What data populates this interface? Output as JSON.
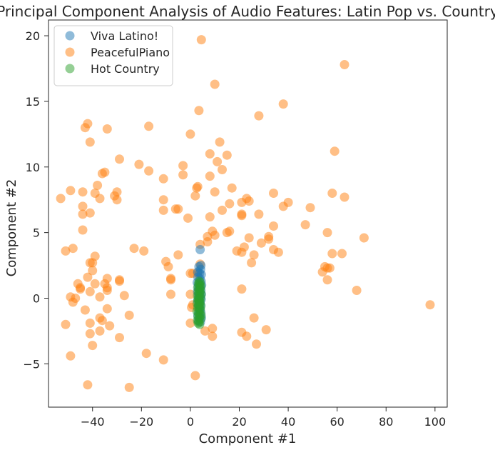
{
  "chart_data": {
    "type": "scatter",
    "title": "Principal Component Analysis of Audio Features: Latin Pop vs. Country",
    "xlabel": "Component #1",
    "ylabel": "Component #2",
    "xlim": [
      -58,
      105
    ],
    "ylim": [
      -8.3,
      21.2
    ],
    "xticks": [
      -40,
      -20,
      0,
      20,
      40,
      60,
      80,
      100
    ],
    "yticks": [
      -5,
      0,
      5,
      10,
      15,
      20
    ],
    "grid": false,
    "legend_position": "top-left",
    "series": [
      {
        "name": "Viva Latino!",
        "color": "#1f77b4",
        "points": [
          [
            4,
            3.7
          ],
          [
            4.3,
            2.5
          ],
          [
            3.5,
            2.4
          ],
          [
            4.2,
            2.2
          ],
          [
            3,
            2
          ],
          [
            3.8,
            1.9
          ],
          [
            4.5,
            1.8
          ],
          [
            3.1,
            1.6
          ],
          [
            3.9,
            1.5
          ],
          [
            4.4,
            1.3
          ],
          [
            2.8,
            1.2
          ],
          [
            3.6,
            1.1
          ],
          [
            4.6,
            1
          ],
          [
            3.2,
            0.9
          ],
          [
            4,
            0.8
          ],
          [
            3.4,
            0.7
          ],
          [
            4.3,
            0.6
          ],
          [
            2.9,
            0.5
          ],
          [
            3.7,
            0.4
          ],
          [
            4.5,
            0.3
          ],
          [
            3.3,
            0.2
          ],
          [
            4.1,
            0.1
          ],
          [
            3.5,
            0
          ],
          [
            4.4,
            -0.1
          ],
          [
            3,
            -0.2
          ],
          [
            3.8,
            -0.3
          ],
          [
            4.2,
            -0.5
          ],
          [
            3.4,
            -0.6
          ],
          [
            4,
            -0.8
          ],
          [
            3.6,
            -1
          ],
          [
            4.3,
            -1.1
          ],
          [
            3.1,
            -1.3
          ],
          [
            3.9,
            -1.4
          ],
          [
            4.5,
            -1.5
          ],
          [
            3.3,
            -1.7
          ],
          [
            4.1,
            -1.8
          ]
        ]
      },
      {
        "name": "PeacefulPiano",
        "color": "#ff7f0e",
        "points": [
          [
            4.5,
            19.7
          ],
          [
            63,
            17.8
          ],
          [
            10,
            16.3
          ],
          [
            3.5,
            14.3
          ],
          [
            28,
            13.9
          ],
          [
            38,
            14.8
          ],
          [
            -17,
            13.1
          ],
          [
            0,
            12.5
          ],
          [
            -42,
            13.3
          ],
          [
            -43,
            13
          ],
          [
            -34,
            12.9
          ],
          [
            -41,
            11.9
          ],
          [
            12,
            11.9
          ],
          [
            8,
            11
          ],
          [
            15,
            10.9
          ],
          [
            59,
            11.2
          ],
          [
            -29,
            10.6
          ],
          [
            -21,
            10.2
          ],
          [
            -3,
            10.1
          ],
          [
            11,
            10.4
          ],
          [
            13,
            9.8
          ],
          [
            -17,
            9.7
          ],
          [
            -3,
            9.4
          ],
          [
            8,
            9.3
          ],
          [
            -36,
            9.5
          ],
          [
            -35,
            9.6
          ],
          [
            -11,
            9.1
          ],
          [
            -38,
            8.6
          ],
          [
            -49,
            8.2
          ],
          [
            -44,
            8.1
          ],
          [
            -30,
            8.1
          ],
          [
            -31,
            7.8
          ],
          [
            3,
            8.5
          ],
          [
            2.6,
            8.4
          ],
          [
            10,
            8.1
          ],
          [
            17,
            8.4
          ],
          [
            34,
            8
          ],
          [
            58,
            8
          ],
          [
            -53,
            7.6
          ],
          [
            -39,
            8
          ],
          [
            -37,
            7.6
          ],
          [
            -30,
            7.5
          ],
          [
            -11,
            7.5
          ],
          [
            2,
            7.8
          ],
          [
            16,
            7.2
          ],
          [
            23,
            7.6
          ],
          [
            24,
            7.4
          ],
          [
            21,
            7.3
          ],
          [
            40,
            7.3
          ],
          [
            38,
            7
          ],
          [
            63,
            7.7
          ],
          [
            -44,
            7
          ],
          [
            -41,
            6.5
          ],
          [
            -44,
            6.4
          ],
          [
            -6,
            6.8
          ],
          [
            -5,
            6.8
          ],
          [
            -11,
            6.7
          ],
          [
            13,
            6.7
          ],
          [
            21,
            6.3
          ],
          [
            28,
            6.4
          ],
          [
            49,
            6.9
          ],
          [
            8,
            6.2
          ],
          [
            21,
            6.4
          ],
          [
            -1,
            6.1
          ],
          [
            47,
            5.6
          ],
          [
            -44,
            5.2
          ],
          [
            34,
            5.5
          ],
          [
            56,
            5
          ],
          [
            9,
            5.1
          ],
          [
            15,
            5
          ],
          [
            16,
            5.1
          ],
          [
            71,
            4.6
          ],
          [
            24,
            4.6
          ],
          [
            7,
            4.7
          ],
          [
            10,
            4.8
          ],
          [
            32,
            4.7
          ],
          [
            32,
            4.5
          ],
          [
            4,
            4.1
          ],
          [
            7,
            4.3
          ],
          [
            29,
            4.2
          ],
          [
            22,
            3.9
          ],
          [
            -48,
            3.8
          ],
          [
            -51,
            3.6
          ],
          [
            -23,
            3.8
          ],
          [
            -19,
            3.6
          ],
          [
            19,
            3.6
          ],
          [
            21,
            3.5
          ],
          [
            34,
            3.7
          ],
          [
            36,
            3.5
          ],
          [
            58,
            3.4
          ],
          [
            62,
            3.4
          ],
          [
            -39,
            3.2
          ],
          [
            -5,
            3.3
          ],
          [
            26,
            3.3
          ],
          [
            -10,
            2.8
          ],
          [
            -40,
            2.7
          ],
          [
            -41,
            2.7
          ],
          [
            4,
            2.6
          ],
          [
            25,
            2.7
          ],
          [
            55,
            2.4
          ],
          [
            56,
            2.3
          ],
          [
            57,
            2.3
          ],
          [
            -9,
            2.4
          ],
          [
            54,
            2
          ],
          [
            -40,
            2.1
          ],
          [
            0,
            1.9
          ],
          [
            1,
            1.9
          ],
          [
            3,
            1.9
          ],
          [
            -42,
            1.6
          ],
          [
            -34,
            1.5
          ],
          [
            -29,
            1.4
          ],
          [
            -29,
            1.3
          ],
          [
            -8,
            1.5
          ],
          [
            -8,
            1.4
          ],
          [
            56,
            1.4
          ],
          [
            -35,
            1.1
          ],
          [
            -39,
            1.1
          ],
          [
            -46,
            1.1
          ],
          [
            -45,
            0.8
          ],
          [
            -45,
            0.7
          ],
          [
            -34,
            0.8
          ],
          [
            -34,
            0.6
          ],
          [
            -41,
            0.5
          ],
          [
            -27,
            0.2
          ],
          [
            -8,
            0.3
          ],
          [
            0,
            0.3
          ],
          [
            21,
            0.7
          ],
          [
            68,
            0.6
          ],
          [
            -49,
            0.1
          ],
          [
            -47,
            0
          ],
          [
            -37,
            0.1
          ],
          [
            -48,
            -0.3
          ],
          [
            -43,
            -0.9
          ],
          [
            -34,
            -0.8
          ],
          [
            1,
            -0.5
          ],
          [
            0.5,
            -0.7
          ],
          [
            -25,
            -1.3
          ],
          [
            -37,
            -1.5
          ],
          [
            -36,
            -1.7
          ],
          [
            -41,
            -1.9
          ],
          [
            0,
            -1.9
          ],
          [
            26,
            -1.5
          ],
          [
            -51,
            -2
          ],
          [
            -33,
            -2.1
          ],
          [
            -37,
            -2.5
          ],
          [
            -41,
            -2.7
          ],
          [
            6,
            -2.5
          ],
          [
            9,
            -2.3
          ],
          [
            21,
            -2.6
          ],
          [
            31,
            -2.4
          ],
          [
            23,
            -2.9
          ],
          [
            9,
            -2.9
          ],
          [
            -29,
            -3
          ],
          [
            -40,
            -3.6
          ],
          [
            27,
            -3.5
          ],
          [
            -49,
            -4.4
          ],
          [
            -18,
            -4.2
          ],
          [
            -11,
            -4.7
          ],
          [
            2,
            -5.9
          ],
          [
            -42,
            -6.6
          ],
          [
            -25,
            -6.8
          ],
          [
            98,
            -0.5
          ]
        ]
      },
      {
        "name": "Hot Country",
        "color": "#2ca02c",
        "points": [
          [
            3.6,
            1.3
          ],
          [
            4,
            1.2
          ],
          [
            3.3,
            1.1
          ],
          [
            3.9,
            1
          ],
          [
            4.3,
            0.9
          ],
          [
            3,
            0.8
          ],
          [
            3.7,
            0.7
          ],
          [
            4.1,
            0.6
          ],
          [
            3.2,
            0.5
          ],
          [
            3.8,
            0.4
          ],
          [
            4.4,
            0.3
          ],
          [
            2.9,
            0.2
          ],
          [
            3.5,
            0.1
          ],
          [
            4.2,
            0
          ],
          [
            3.1,
            -0.1
          ],
          [
            3.6,
            -0.2
          ],
          [
            4,
            -0.3
          ],
          [
            2.8,
            -0.4
          ],
          [
            3.4,
            -0.5
          ],
          [
            4.3,
            -0.6
          ],
          [
            3,
            -0.7
          ],
          [
            3.7,
            -0.8
          ],
          [
            4.1,
            -0.9
          ],
          [
            2.7,
            -1
          ],
          [
            3.3,
            -1.1
          ],
          [
            3.9,
            -1.2
          ],
          [
            4.4,
            -1.3
          ],
          [
            3.1,
            -1.4
          ],
          [
            3.6,
            -1.5
          ],
          [
            4.2,
            -1.6
          ],
          [
            2.9,
            -1.7
          ],
          [
            3.5,
            -1.8
          ],
          [
            3.2,
            -1.9
          ],
          [
            3.8,
            -2
          ],
          [
            3.4,
            -0.1
          ],
          [
            3.8,
            -0.45
          ]
        ]
      }
    ]
  }
}
